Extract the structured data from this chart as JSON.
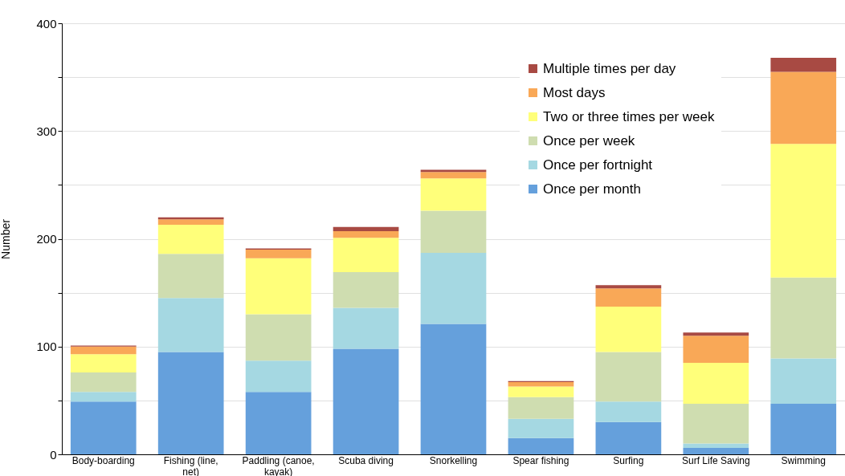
{
  "chart_data": {
    "type": "bar",
    "stacked": true,
    "ylabel": "Number",
    "categories": [
      "Body-boarding",
      "Fishing (line, net)",
      "Paddling (canoe, kayak)",
      "Scuba diving",
      "Snorkelling",
      "Spear fishing",
      "Surfing",
      "Surf Life Saving",
      "Swimming"
    ],
    "series": [
      {
        "name": "Once per month",
        "color": "#65a0dc",
        "values": [
          49,
          95,
          58,
          98,
          121,
          15,
          30,
          6,
          47
        ]
      },
      {
        "name": "Once per fortnight",
        "color": "#a5d8e2",
        "values": [
          9,
          50,
          29,
          38,
          66,
          18,
          19,
          4,
          42
        ]
      },
      {
        "name": "Once per week",
        "color": "#cfddb0",
        "values": [
          18,
          41,
          43,
          33,
          39,
          20,
          46,
          37,
          75
        ]
      },
      {
        "name": "Two or three times per week",
        "color": "#ffff7a",
        "values": [
          17,
          27,
          52,
          32,
          30,
          10,
          42,
          38,
          124
        ]
      },
      {
        "name": "Most days",
        "color": "#f9a857",
        "values": [
          7,
          5,
          8,
          6,
          6,
          4,
          17,
          25,
          67
        ]
      },
      {
        "name": "Multiple times per day",
        "color": "#a84a43",
        "values": [
          1,
          2,
          1,
          4,
          2,
          1,
          3,
          3,
          13
        ]
      }
    ],
    "ylim": [
      0,
      400
    ],
    "yticks": [
      0,
      {
        "value": 50,
        "label": null
      },
      100,
      {
        "value": 150,
        "label": null
      },
      200,
      {
        "value": 250,
        "label": null
      },
      300,
      {
        "value": 350,
        "label": null
      },
      400
    ],
    "grid": true,
    "legend": "top right"
  }
}
